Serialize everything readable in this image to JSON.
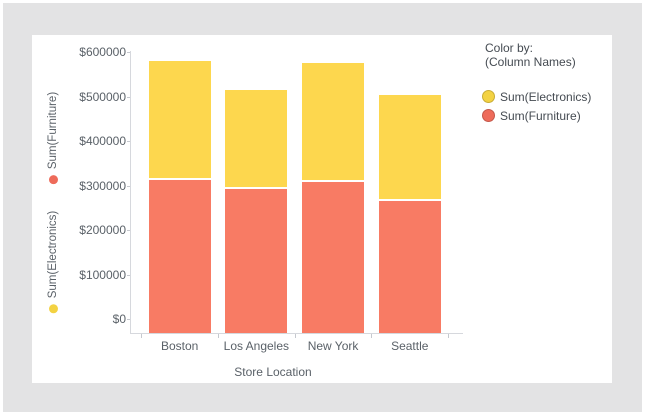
{
  "legend": {
    "title": "Color by:",
    "subtitle": "(Column Names)",
    "items": [
      {
        "label": "Sum(Electronics)",
        "color": "#F3D242",
        "border_color": "#C9AD36"
      },
      {
        "label": "Sum(Furniture)",
        "color": "#EE6B5A",
        "border_color": "#C4584B"
      }
    ]
  },
  "y_axis": {
    "measures": [
      {
        "label": "Sum(Furniture)",
        "dot_color": "#EE6B5A"
      },
      {
        "label": "Sum(Electronics)",
        "dot_color": "#F3D242"
      }
    ],
    "tick_labels": [
      "$600000",
      "$500000",
      "$400000",
      "$300000",
      "$200000",
      "$100000",
      "$0"
    ]
  },
  "x_axis": {
    "title": "Store Location"
  },
  "chart_data": {
    "type": "bar",
    "stacked": true,
    "title": "",
    "xlabel": "Store Location",
    "ylabel": "Sum(Furniture) / Sum(Electronics)",
    "categories": [
      "Boston",
      "Los Angeles",
      "New York",
      "Seattle"
    ],
    "series": [
      {
        "name": "Sum(Furniture)",
        "color": "#F87B64",
        "values": [
          315000,
          295000,
          310000,
          268000
        ]
      },
      {
        "name": "Sum(Electronics)",
        "color": "#FDD74E",
        "values": [
          265000,
          220000,
          266000,
          235000
        ]
      }
    ],
    "totals": [
      580000,
      515000,
      576000,
      503000
    ],
    "ylim": [
      0,
      600000
    ],
    "y_tick_values": [
      600000,
      500000,
      400000,
      300000,
      200000,
      100000,
      0
    ],
    "y_tick_prefix": "$",
    "grid": false,
    "legend_position": "top-right"
  },
  "colors": {
    "canvas_bg": "#E3E3E4",
    "panel_bg": "#FFFFFF",
    "axis_line": "#D6D8DD",
    "text": "#5A6168"
  }
}
